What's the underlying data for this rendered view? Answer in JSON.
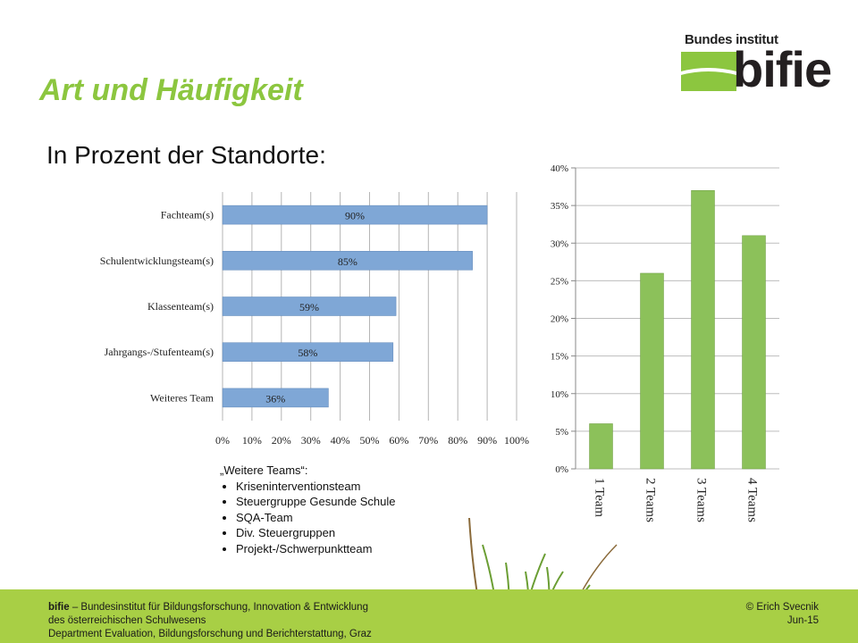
{
  "title": "Art und Häufigkeit",
  "logo": {
    "top_text": "Bundes institut",
    "word": "bifie"
  },
  "subtitle": "In Prozent der Standorte:",
  "chart_data": [
    {
      "type": "bar",
      "orientation": "horizontal",
      "categories": [
        "Fachteam(s)",
        "Schulentwicklungsteam(s)",
        "Klassenteam(s)",
        "Jahrgangs-/Stufenteam(s)",
        "Weiteres Team"
      ],
      "values": [
        90,
        85,
        59,
        58,
        36
      ],
      "data_labels": [
        "90%",
        "85%",
        "59%",
        "58%",
        "36%"
      ],
      "xlim": [
        0,
        100
      ],
      "xticks": [
        "0%",
        "10%",
        "20%",
        "30%",
        "40%",
        "50%",
        "60%",
        "70%",
        "80%",
        "90%",
        "100%"
      ],
      "grid": true,
      "color": "#7fa7d6"
    },
    {
      "type": "bar",
      "orientation": "vertical",
      "categories": [
        "1 Team",
        "2 Teams",
        "3 Teams",
        "4 Teams"
      ],
      "values": [
        6,
        26,
        37,
        31
      ],
      "ylim": [
        0,
        40
      ],
      "yticks": [
        "0%",
        "5%",
        "10%",
        "15%",
        "20%",
        "25%",
        "30%",
        "35%",
        "40%"
      ],
      "grid": true,
      "color": "#8cc15a"
    }
  ],
  "notes": {
    "heading": "„Weitere Teams“:",
    "items": [
      "Kriseninterventionsteam",
      "Steuergruppe Gesunde Schule",
      "SQA-Team",
      "Div. Steuergruppen",
      "Projekt-/Schwerpunktteam"
    ]
  },
  "footer": {
    "brand": "bifie",
    "line1": " – Bundesinstitut für Bildungsforschung, Innovation & Entwicklung",
    "line2": "des österreichischen Schulwesens",
    "line3": "Department Evaluation, Bildungsforschung und Berichterstattung, Graz",
    "author": "© Erich Svecnik",
    "date": "Jun-15"
  },
  "colors": {
    "accent": "#8cc63f",
    "footer_bg": "#a8cf45"
  }
}
